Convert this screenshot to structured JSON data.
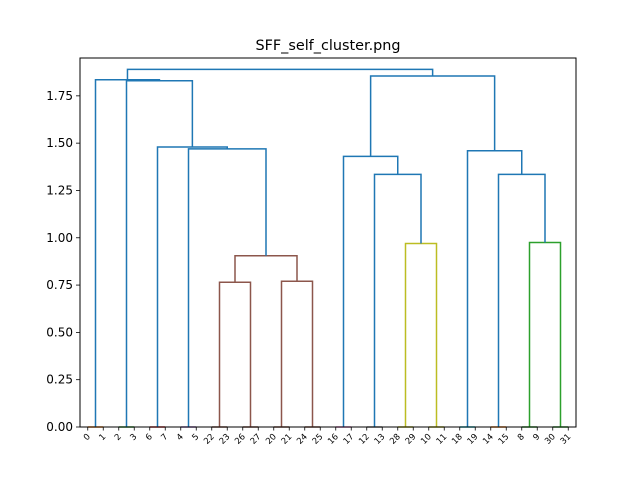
{
  "chart_data": {
    "type": "dendrogram",
    "title": "SFF_self_cluster.png",
    "xlabel": "",
    "ylabel": "",
    "ylim": [
      0,
      1.95
    ],
    "yticks": [
      0.0,
      0.25,
      0.5,
      0.75,
      1.0,
      1.25,
      1.5,
      1.75
    ],
    "ytick_labels": [
      "0.00",
      "0.25",
      "0.50",
      "0.75",
      "1.00",
      "1.25",
      "1.50",
      "1.75"
    ],
    "leaves": [
      "0",
      "1",
      "2",
      "3",
      "6",
      "7",
      "4",
      "5",
      "22",
      "23",
      "26",
      "27",
      "20",
      "21",
      "24",
      "25",
      "16",
      "17",
      "12",
      "13",
      "28",
      "29",
      "10",
      "11",
      "18",
      "19",
      "14",
      "15",
      "8",
      "9",
      "30",
      "31"
    ],
    "leaf_colors": [
      "#ff7f0e",
      "#ff7f0e",
      "#2ca02c",
      "#2ca02c",
      "#d62728",
      "#d62728",
      "#9467bd",
      "#9467bd",
      "#8c564b",
      "#8c564b",
      "#8c564b",
      "#8c564b",
      "#8c564b",
      "#8c564b",
      "#8c564b",
      "#8c564b",
      "#e377c2",
      "#e377c2",
      "#7f7f7f",
      "#7f7f7f",
      "#bcbd22",
      "#bcbd22",
      "#bcbd22",
      "#bcbd22",
      "#17becf",
      "#17becf",
      "#ff7f0e",
      "#ff7f0e",
      "#2ca02c",
      "#2ca02c",
      "#2ca02c",
      "#2ca02c"
    ],
    "merges": [
      {
        "left": 0,
        "right": 1,
        "height": 0.0,
        "color": "#ff7f0e"
      },
      {
        "left": 2,
        "right": 3,
        "height": 0.0,
        "color": "#2ca02c"
      },
      {
        "left": 4,
        "right": 5,
        "height": 0.0,
        "color": "#d62728"
      },
      {
        "left": 6,
        "right": 7,
        "height": 0.0,
        "color": "#9467bd"
      },
      {
        "left": 8,
        "right": 9,
        "height": 0.0,
        "color": "#8c564b"
      },
      {
        "left": 10,
        "right": 11,
        "height": 0.0,
        "color": "#8c564b"
      },
      {
        "left": 12,
        "right": 13,
        "height": 0.0,
        "color": "#8c564b"
      },
      {
        "left": 14,
        "right": 15,
        "height": 0.0,
        "color": "#8c564b"
      },
      {
        "left": 16,
        "right": 17,
        "height": 0.0,
        "color": "#e377c2"
      },
      {
        "left": 18,
        "right": 19,
        "height": 0.0,
        "color": "#7f7f7f"
      },
      {
        "left": 20,
        "right": 21,
        "height": 0.0,
        "color": "#bcbd22"
      },
      {
        "left": 22,
        "right": 23,
        "height": 0.0,
        "color": "#bcbd22"
      },
      {
        "left": 24,
        "right": 25,
        "height": 0.0,
        "color": "#17becf"
      },
      {
        "left": 26,
        "right": 27,
        "height": 0.0,
        "color": "#ff7f0e"
      },
      {
        "left": 28,
        "right": 29,
        "height": 0.0,
        "color": "#2ca02c"
      },
      {
        "left": 30,
        "right": 31,
        "height": 0.0,
        "color": "#2ca02c"
      },
      {
        "left": 36,
        "right": 37,
        "height": 0.765,
        "color": "#8c564b"
      },
      {
        "left": 38,
        "right": 39,
        "height": 0.77,
        "color": "#8c564b"
      },
      {
        "left": 48,
        "right": 49,
        "height": 0.905,
        "color": "#8c564b"
      },
      {
        "left": 43,
        "right": 42,
        "height": 0.97,
        "color": "#bcbd22"
      },
      {
        "left": 46,
        "right": 47,
        "height": 0.975,
        "color": "#2ca02c"
      },
      {
        "left": 41,
        "right": 51,
        "height": 1.335,
        "color": "#1f77b4"
      },
      {
        "left": 45,
        "right": 52,
        "height": 1.335,
        "color": "#1f77b4"
      },
      {
        "left": 40,
        "right": 53,
        "height": 1.43,
        "color": "#1f77b4"
      },
      {
        "left": 44,
        "right": 54,
        "height": 1.46,
        "color": "#1f77b4"
      },
      {
        "left": 35,
        "right": 50,
        "height": 1.47,
        "color": "#1f77b4"
      },
      {
        "left": 34,
        "right": 57,
        "height": 1.48,
        "color": "#1f77b4"
      },
      {
        "left": 55,
        "right": 56,
        "height": 1.855,
        "color": "#1f77b4"
      },
      {
        "left": 33,
        "right": 58,
        "height": 1.83,
        "color": "#1f77b4"
      },
      {
        "left": 32,
        "right": 60,
        "height": 1.835,
        "color": "#1f77b4"
      },
      {
        "left": 61,
        "right": 59,
        "height": 1.89,
        "color": "#1f77b4"
      }
    ]
  }
}
